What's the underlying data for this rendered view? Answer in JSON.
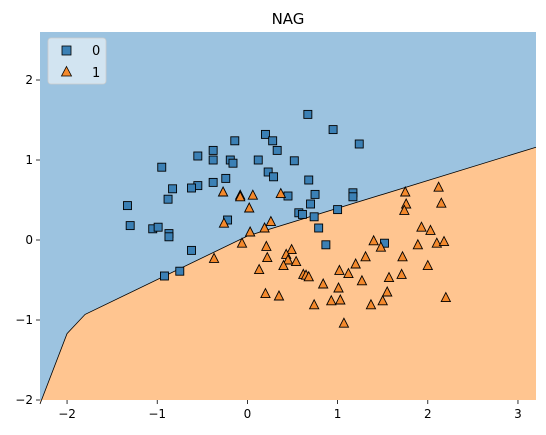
{
  "chart_data": {
    "type": "scatter",
    "title": "NAG",
    "xlabel": "",
    "ylabel": "",
    "xlim": [
      -2.3,
      3.2
    ],
    "ylim": [
      -2.0,
      2.6
    ],
    "x_ticks": [
      -2,
      -1,
      0,
      1,
      2,
      3
    ],
    "y_ticks": [
      -2,
      -1,
      0,
      1,
      2
    ],
    "legend_position": "top-left",
    "grid": false,
    "decision_boundary": [
      [
        -2.3,
        -2.05
      ],
      [
        -2.0,
        -1.17
      ],
      [
        -1.8,
        -0.93
      ],
      [
        0.0,
        0.05
      ],
      [
        3.2,
        1.16
      ]
    ],
    "colors": {
      "class0_region": "#9cc3e0",
      "class1_region": "#ffc590",
      "class0_marker": "#3b80b5",
      "class1_marker": "#f4892c",
      "boundary": "#000000"
    },
    "series": [
      {
        "name": "0",
        "marker": "square",
        "points": [
          [
            0.67,
            1.57
          ],
          [
            0.95,
            1.38
          ],
          [
            1.24,
            1.2
          ],
          [
            0.2,
            1.32
          ],
          [
            0.28,
            1.24
          ],
          [
            0.33,
            1.12
          ],
          [
            -0.14,
            1.24
          ],
          [
            -0.55,
            1.05
          ],
          [
            -0.38,
            1.12
          ],
          [
            -0.38,
            1.0
          ],
          [
            -0.19,
            1.0
          ],
          [
            -0.16,
            0.96
          ],
          [
            0.12,
            1.0
          ],
          [
            0.52,
            0.99
          ],
          [
            -0.95,
            0.91
          ],
          [
            0.23,
            0.85
          ],
          [
            0.29,
            0.79
          ],
          [
            0.68,
            0.75
          ],
          [
            -0.38,
            0.72
          ],
          [
            -0.55,
            0.68
          ],
          [
            -0.62,
            0.65
          ],
          [
            -0.83,
            0.64
          ],
          [
            0.75,
            0.57
          ],
          [
            1.17,
            0.59
          ],
          [
            1.17,
            0.54
          ],
          [
            0.45,
            0.55
          ],
          [
            -0.24,
            0.77
          ],
          [
            -0.22,
            0.25
          ],
          [
            0.7,
            0.45
          ],
          [
            -0.88,
            0.51
          ],
          [
            -1.33,
            0.43
          ],
          [
            0.57,
            0.34
          ],
          [
            0.61,
            0.32
          ],
          [
            1.0,
            0.38
          ],
          [
            0.74,
            0.29
          ],
          [
            -1.3,
            0.18
          ],
          [
            -1.05,
            0.14
          ],
          [
            -0.99,
            0.16
          ],
          [
            0.79,
            0.15
          ],
          [
            -0.87,
            0.08
          ],
          [
            -0.87,
            0.04
          ],
          [
            0.87,
            -0.06
          ],
          [
            1.52,
            -0.04
          ],
          [
            -0.75,
            -0.39
          ],
          [
            -0.62,
            -0.13
          ],
          [
            -0.92,
            -0.45
          ]
        ]
      },
      {
        "name": "1",
        "marker": "triangle",
        "points": [
          [
            2.12,
            0.66
          ],
          [
            1.75,
            0.6
          ],
          [
            1.76,
            0.45
          ],
          [
            2.15,
            0.46
          ],
          [
            -0.27,
            0.6
          ],
          [
            -0.08,
            0.56
          ],
          [
            0.06,
            0.56
          ],
          [
            0.37,
            0.58
          ],
          [
            -0.08,
            0.54
          ],
          [
            0.02,
            0.4
          ],
          [
            1.74,
            0.37
          ],
          [
            0.26,
            0.23
          ],
          [
            0.19,
            0.15
          ],
          [
            -0.26,
            0.21
          ],
          [
            0.03,
            0.1
          ],
          [
            1.93,
            0.16
          ],
          [
            2.03,
            0.12
          ],
          [
            2.1,
            -0.04
          ],
          [
            2.18,
            -0.02
          ],
          [
            0.21,
            -0.08
          ],
          [
            -0.06,
            -0.04
          ],
          [
            1.4,
            -0.01
          ],
          [
            1.48,
            -0.09
          ],
          [
            0.49,
            -0.12
          ],
          [
            0.43,
            -0.18
          ],
          [
            1.31,
            -0.21
          ],
          [
            1.72,
            -0.21
          ],
          [
            0.22,
            -0.22
          ],
          [
            1.89,
            -0.06
          ],
          [
            -0.37,
            -0.23
          ],
          [
            0.45,
            -0.25
          ],
          [
            0.54,
            -0.27
          ],
          [
            0.4,
            -0.32
          ],
          [
            1.2,
            -0.3
          ],
          [
            2.0,
            -0.32
          ],
          [
            0.13,
            -0.37
          ],
          [
            1.02,
            -0.38
          ],
          [
            1.12,
            -0.42
          ],
          [
            0.62,
            -0.43
          ],
          [
            0.65,
            -0.44
          ],
          [
            1.71,
            -0.43
          ],
          [
            0.68,
            -0.46
          ],
          [
            1.57,
            -0.47
          ],
          [
            1.27,
            -0.51
          ],
          [
            0.84,
            -0.55
          ],
          [
            1.01,
            -0.6
          ],
          [
            1.55,
            -0.65
          ],
          [
            0.2,
            -0.67
          ],
          [
            0.35,
            -0.7
          ],
          [
            2.2,
            -0.72
          ],
          [
            1.03,
            -0.75
          ],
          [
            0.93,
            -0.76
          ],
          [
            1.5,
            -0.76
          ],
          [
            0.74,
            -0.81
          ],
          [
            1.37,
            -0.81
          ],
          [
            1.07,
            -1.04
          ]
        ]
      }
    ]
  }
}
